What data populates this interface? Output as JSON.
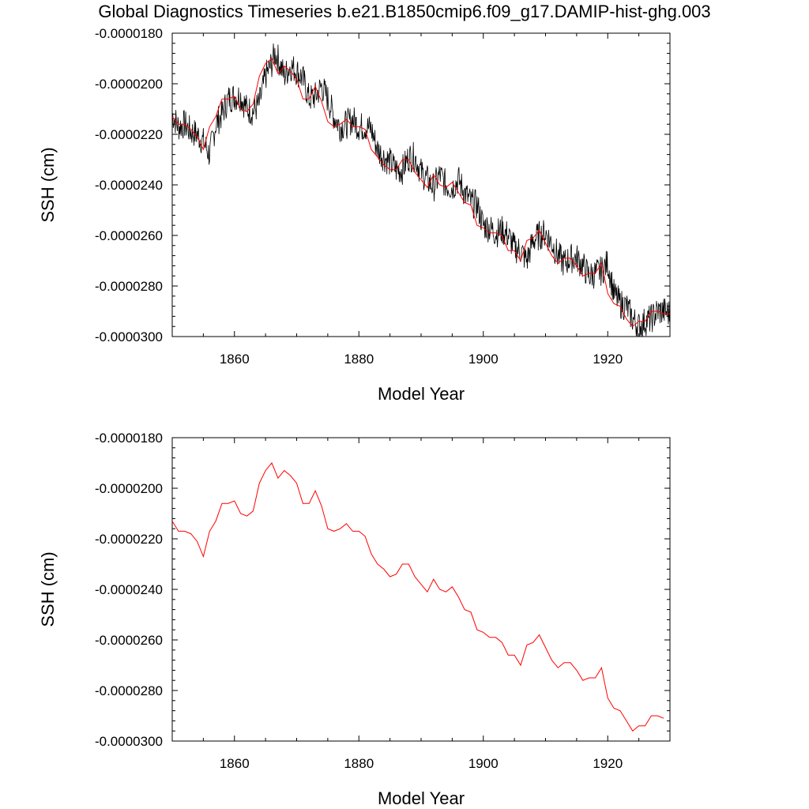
{
  "title": "Global Diagnostics Timeseries b.e21.B1850cmip6.f09_g17.DAMIP-hist-ghg.003",
  "colors": {
    "raw_series": "#000000",
    "smoothed_series": "#ff0000",
    "axes": "#000000",
    "background": "#ffffff"
  },
  "chart_data": [
    {
      "type": "line",
      "title": "",
      "xlabel": "Model Year",
      "ylabel": "SSH (cm)",
      "xlim": [
        1850,
        1930
      ],
      "ylim": [
        -3e-05,
        -1.8e-05
      ],
      "xticks": [
        1860,
        1880,
        1900,
        1920
      ],
      "xtick_labels": [
        "1860",
        "1880",
        "1900",
        "1920"
      ],
      "yticks": [
        -3e-05,
        -2.8e-05,
        -2.6e-05,
        -2.4e-05,
        -2.2e-05,
        -2e-05,
        -1.8e-05
      ],
      "ytick_labels": [
        "-0.0000300",
        "-0.0000280",
        "-0.0000260",
        "-0.0000240",
        "-0.0000220",
        "-0.0000200",
        "-0.0000180"
      ],
      "grid": false,
      "series": [
        {
          "role": "monthly",
          "color": "#000000",
          "x_start": 1850,
          "x_step": 0.08333333,
          "anchors": [
            [
              1850,
              -2.12e-05
            ],
            [
              1851,
              -2.17e-05
            ],
            [
              1852,
              -2.16e-05
            ],
            [
              1853,
              -2.19e-05
            ],
            [
              1854,
              -2.2e-05
            ],
            [
              1855,
              -2.23e-05
            ],
            [
              1856,
              -2.28e-05
            ],
            [
              1857,
              -2.16e-05
            ],
            [
              1858,
              -2.12e-05
            ],
            [
              1859,
              -2.06e-05
            ],
            [
              1860,
              -2.05e-05
            ],
            [
              1861,
              -2.05e-05
            ],
            [
              1862,
              -2.1e-05
            ],
            [
              1863,
              -2.11e-05
            ],
            [
              1864,
              -2.08e-05
            ],
            [
              1865,
              -1.97e-05
            ],
            [
              1866,
              -1.92e-05
            ],
            [
              1866.5,
              -1.88e-05
            ],
            [
              1867,
              -1.9e-05
            ],
            [
              1868,
              -1.97e-05
            ],
            [
              1869,
              -1.93e-05
            ],
            [
              1870,
              -1.95e-05
            ],
            [
              1871,
              -1.98e-05
            ],
            [
              1872,
              -2.06e-05
            ],
            [
              1873,
              -2.05e-05
            ],
            [
              1874,
              -2.01e-05
            ],
            [
              1875,
              -2.06e-05
            ],
            [
              1876,
              -2.13e-05
            ],
            [
              1877,
              -2.17e-05
            ],
            [
              1878,
              -2.16e-05
            ],
            [
              1879,
              -2.14e-05
            ],
            [
              1880,
              -2.17e-05
            ],
            [
              1881,
              -2.17e-05
            ],
            [
              1882,
              -2.18e-05
            ],
            [
              1883,
              -2.26e-05
            ],
            [
              1884,
              -2.29e-05
            ],
            [
              1885,
              -2.31e-05
            ],
            [
              1886,
              -2.34e-05
            ],
            [
              1887,
              -2.34e-05
            ],
            [
              1888,
              -2.29e-05
            ],
            [
              1889,
              -2.29e-05
            ],
            [
              1890,
              -2.35e-05
            ],
            [
              1891,
              -2.38e-05
            ],
            [
              1892,
              -2.41e-05
            ],
            [
              1893,
              -2.36e-05
            ],
            [
              1894,
              -2.4e-05
            ],
            [
              1895,
              -2.41e-05
            ],
            [
              1896,
              -2.38e-05
            ],
            [
              1897,
              -2.43e-05
            ],
            [
              1898,
              -2.47e-05
            ],
            [
              1899,
              -2.48e-05
            ],
            [
              1900,
              -2.56e-05
            ],
            [
              1901,
              -2.57e-05
            ],
            [
              1902,
              -2.59e-05
            ],
            [
              1903,
              -2.58e-05
            ],
            [
              1904,
              -2.6e-05
            ],
            [
              1905,
              -2.65e-05
            ],
            [
              1906,
              -2.66e-05
            ],
            [
              1907,
              -2.7e-05
            ],
            [
              1908,
              -2.62e-05
            ],
            [
              1909,
              -2.6e-05
            ],
            [
              1910,
              -2.59e-05
            ],
            [
              1911,
              -2.63e-05
            ],
            [
              1912,
              -2.68e-05
            ],
            [
              1913,
              -2.71e-05
            ],
            [
              1914,
              -2.69e-05
            ],
            [
              1915,
              -2.69e-05
            ],
            [
              1916,
              -2.72e-05
            ],
            [
              1917,
              -2.76e-05
            ],
            [
              1918,
              -2.75e-05
            ],
            [
              1919,
              -2.74e-05
            ],
            [
              1920,
              -2.71e-05
            ],
            [
              1921,
              -2.83e-05
            ],
            [
              1922,
              -2.87e-05
            ],
            [
              1923,
              -2.88e-05
            ],
            [
              1924,
              -2.93e-05
            ],
            [
              1925,
              -2.96e-05
            ],
            [
              1926,
              -2.94e-05
            ],
            [
              1927,
              -2.93e-05
            ],
            [
              1928,
              -2.9e-05
            ],
            [
              1929,
              -2.9e-05
            ],
            [
              1930,
              -2.91e-05
            ]
          ],
          "noise_amplitude": 6e-07
        },
        {
          "role": "annual",
          "color": "#ff0000",
          "x": [
            1850,
            1851,
            1852,
            1853,
            1854,
            1855,
            1856,
            1857,
            1858,
            1859,
            1860,
            1861,
            1862,
            1863,
            1864,
            1865,
            1866,
            1867,
            1868,
            1869,
            1870,
            1871,
            1872,
            1873,
            1874,
            1875,
            1876,
            1877,
            1878,
            1879,
            1880,
            1881,
            1882,
            1883,
            1884,
            1885,
            1886,
            1887,
            1888,
            1889,
            1890,
            1891,
            1892,
            1893,
            1894,
            1895,
            1896,
            1897,
            1898,
            1899,
            1900,
            1901,
            1902,
            1903,
            1904,
            1905,
            1906,
            1907,
            1908,
            1909,
            1910,
            1911,
            1912,
            1913,
            1914,
            1915,
            1916,
            1917,
            1918,
            1919,
            1920,
            1921,
            1922,
            1923,
            1924,
            1925,
            1926,
            1927,
            1928,
            1929,
            1930
          ],
          "values": [
            -2.13e-05,
            -2.16e-05,
            -2.16e-05,
            -2.18e-05,
            -2.21e-05,
            -2.26e-05,
            -2.17e-05,
            -2.13e-05,
            -2.06e-05,
            -2.06e-05,
            -2.05e-05,
            -2.1e-05,
            -2.11e-05,
            -2.08e-05,
            -1.97e-05,
            -1.92e-05,
            -1.9e-05,
            -1.96e-05,
            -1.93e-05,
            -1.95e-05,
            -1.98e-05,
            -2.06e-05,
            -2.06e-05,
            -2.01e-05,
            -2.07e-05,
            -2.15e-05,
            -2.17e-05,
            -2.16e-05,
            -2.14e-05,
            -2.17e-05,
            -2.17e-05,
            -2.18e-05,
            -2.26e-05,
            -2.29e-05,
            -2.32e-05,
            -2.34e-05,
            -2.34e-05,
            -2.3e-05,
            -2.3e-05,
            -2.35e-05,
            -2.38e-05,
            -2.41e-05,
            -2.36e-05,
            -2.4e-05,
            -2.41e-05,
            -2.39e-05,
            -2.43e-05,
            -2.47e-05,
            -2.48e-05,
            -2.56e-05,
            -2.57e-05,
            -2.59e-05,
            -2.59e-05,
            -2.6e-05,
            -2.66e-05,
            -2.66e-05,
            -2.7e-05,
            -2.62e-05,
            -2.61e-05,
            -2.58e-05,
            -2.63e-05,
            -2.68e-05,
            -2.71e-05,
            -2.69e-05,
            -2.69e-05,
            -2.72e-05,
            -2.76e-05,
            -2.75e-05,
            -2.75e-05,
            -2.71e-05,
            -2.83e-05,
            -2.87e-05,
            -2.88e-05,
            -2.93e-05,
            -2.96e-05,
            -2.94e-05,
            -2.94e-05,
            -2.9e-05,
            -2.9e-05,
            -2.91e-05,
            -2.91e-05
          ]
        }
      ]
    },
    {
      "type": "line",
      "title": "",
      "xlabel": "Model Year",
      "ylabel": "SSH (cm)",
      "xlim": [
        1850,
        1930
      ],
      "ylim": [
        -3e-05,
        -1.8e-05
      ],
      "xticks": [
        1860,
        1880,
        1900,
        1920
      ],
      "xtick_labels": [
        "1860",
        "1880",
        "1900",
        "1920"
      ],
      "yticks": [
        -3e-05,
        -2.8e-05,
        -2.6e-05,
        -2.4e-05,
        -2.2e-05,
        -2e-05,
        -1.8e-05
      ],
      "ytick_labels": [
        "-0.0000300",
        "-0.0000280",
        "-0.0000260",
        "-0.0000240",
        "-0.0000220",
        "-0.0000200",
        "-0.0000180"
      ],
      "grid": false,
      "series": [
        {
          "role": "annual",
          "color": "#ff0000",
          "x": [
            1850,
            1851,
            1852,
            1853,
            1854,
            1855,
            1856,
            1857,
            1858,
            1859,
            1860,
            1861,
            1862,
            1863,
            1864,
            1865,
            1866,
            1867,
            1868,
            1869,
            1870,
            1871,
            1872,
            1873,
            1874,
            1875,
            1876,
            1877,
            1878,
            1879,
            1880,
            1881,
            1882,
            1883,
            1884,
            1885,
            1886,
            1887,
            1888,
            1889,
            1890,
            1891,
            1892,
            1893,
            1894,
            1895,
            1896,
            1897,
            1898,
            1899,
            1900,
            1901,
            1902,
            1903,
            1904,
            1905,
            1906,
            1907,
            1908,
            1909,
            1910,
            1911,
            1912,
            1913,
            1914,
            1915,
            1916,
            1917,
            1918,
            1919,
            1920,
            1921,
            1922,
            1923,
            1924,
            1925,
            1926,
            1927,
            1928,
            1929
          ],
          "values": [
            -2.13e-05,
            -2.17e-05,
            -2.17e-05,
            -2.18e-05,
            -2.21e-05,
            -2.27e-05,
            -2.17e-05,
            -2.13e-05,
            -2.06e-05,
            -2.06e-05,
            -2.05e-05,
            -2.1e-05,
            -2.11e-05,
            -2.09e-05,
            -1.98e-05,
            -1.93e-05,
            -1.9e-05,
            -1.96e-05,
            -1.93e-05,
            -1.95e-05,
            -1.98e-05,
            -2.06e-05,
            -2.06e-05,
            -2.01e-05,
            -2.07e-05,
            -2.16e-05,
            -2.17e-05,
            -2.16e-05,
            -2.14e-05,
            -2.17e-05,
            -2.17e-05,
            -2.19e-05,
            -2.26e-05,
            -2.3e-05,
            -2.32e-05,
            -2.35e-05,
            -2.34e-05,
            -2.3e-05,
            -2.3e-05,
            -2.35e-05,
            -2.38e-05,
            -2.41e-05,
            -2.36e-05,
            -2.4e-05,
            -2.41e-05,
            -2.39e-05,
            -2.43e-05,
            -2.48e-05,
            -2.49e-05,
            -2.56e-05,
            -2.57e-05,
            -2.59e-05,
            -2.59e-05,
            -2.61e-05,
            -2.66e-05,
            -2.66e-05,
            -2.7e-05,
            -2.62e-05,
            -2.61e-05,
            -2.58e-05,
            -2.63e-05,
            -2.68e-05,
            -2.71e-05,
            -2.69e-05,
            -2.69e-05,
            -2.72e-05,
            -2.76e-05,
            -2.75e-05,
            -2.75e-05,
            -2.71e-05,
            -2.83e-05,
            -2.87e-05,
            -2.88e-05,
            -2.92e-05,
            -2.96e-05,
            -2.94e-05,
            -2.94e-05,
            -2.9e-05,
            -2.9e-05,
            -2.91e-05
          ]
        }
      ]
    }
  ]
}
